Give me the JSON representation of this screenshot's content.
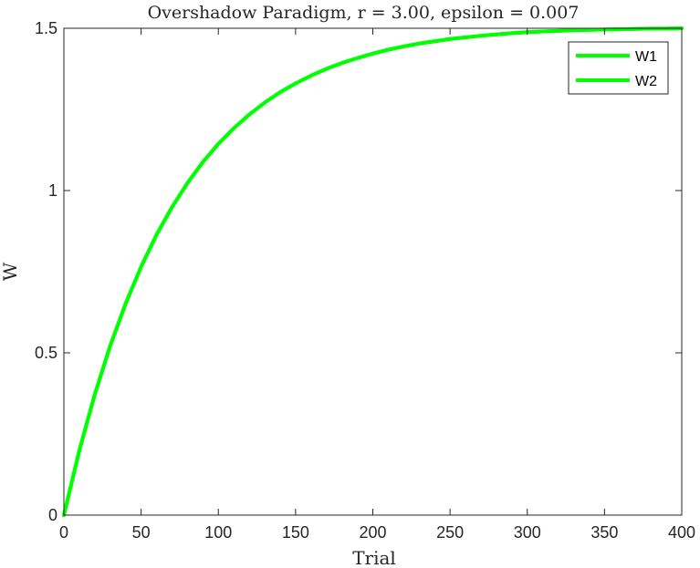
{
  "chart_data": {
    "type": "line",
    "title": "Overshadow Paradigm, r = 3.00, epsilon = 0.007",
    "xlabel": "Trial",
    "ylabel": "W",
    "xlim": [
      0,
      400
    ],
    "ylim": [
      0,
      1.5
    ],
    "xticks": [
      "0",
      "50",
      "100",
      "150",
      "200",
      "250",
      "300",
      "350",
      "400"
    ],
    "yticks": [
      "0",
      "0.5",
      "1",
      "1.5"
    ],
    "legend_position": "top-right",
    "grid": false,
    "x": [
      0,
      10,
      20,
      30,
      40,
      50,
      60,
      70,
      80,
      90,
      100,
      110,
      120,
      130,
      140,
      150,
      160,
      170,
      180,
      190,
      200,
      210,
      220,
      230,
      240,
      250,
      260,
      270,
      280,
      290,
      300,
      310,
      320,
      330,
      340,
      350,
      360,
      370,
      380,
      390,
      400
    ],
    "series": [
      {
        "name": "W1",
        "color": "#00ff00",
        "values": [
          0,
          0.199,
          0.372,
          0.522,
          0.652,
          0.765,
          0.864,
          0.949,
          1.023,
          1.088,
          1.144,
          1.192,
          1.234,
          1.271,
          1.303,
          1.33,
          1.354,
          1.375,
          1.393,
          1.408,
          1.422,
          1.434,
          1.444,
          1.453,
          1.46,
          1.467,
          1.472,
          1.477,
          1.481,
          1.485,
          1.488,
          1.49,
          1.492,
          1.494,
          1.495,
          1.496,
          1.497,
          1.498,
          1.499,
          1.499,
          1.5
        ]
      },
      {
        "name": "W2",
        "color": "#00ff00",
        "values": [
          0,
          0.199,
          0.372,
          0.522,
          0.652,
          0.765,
          0.864,
          0.949,
          1.023,
          1.088,
          1.144,
          1.192,
          1.234,
          1.271,
          1.303,
          1.33,
          1.354,
          1.375,
          1.393,
          1.408,
          1.422,
          1.434,
          1.444,
          1.453,
          1.46,
          1.467,
          1.472,
          1.477,
          1.481,
          1.485,
          1.488,
          1.49,
          1.492,
          1.494,
          1.495,
          1.496,
          1.497,
          1.498,
          1.499,
          1.499,
          1.5
        ]
      }
    ]
  }
}
